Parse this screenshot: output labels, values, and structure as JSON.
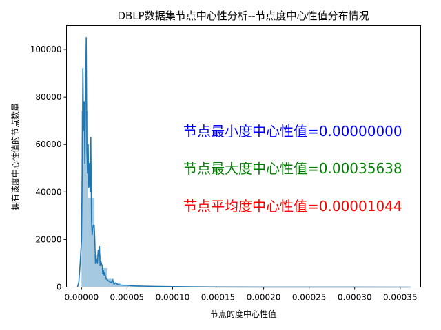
{
  "chart_data": {
    "type": "histogram",
    "title": "DBLP数据集节点中心性分析--节点度中心性值分布情况",
    "xlabel": "节点的度中心性值",
    "ylabel": "拥有该度中心性值的节点数量",
    "xlim": [
      -1.65e-05,
      0.0003725
    ],
    "ylim": [
      0,
      110000
    ],
    "xticks": [
      0.0,
      5e-05,
      0.0001,
      0.00015,
      0.0002,
      0.00025,
      0.0003,
      0.00035
    ],
    "xtick_labels": [
      "0.00000",
      "0.00005",
      "0.00010",
      "0.00015",
      "0.00020",
      "0.00025",
      "0.00030",
      "0.00035"
    ],
    "yticks": [
      0,
      20000,
      40000,
      60000,
      80000,
      100000
    ],
    "ytick_labels": [
      "0",
      "20000",
      "40000",
      "60000",
      "80000",
      "100000"
    ],
    "grid": false,
    "histogram": {
      "bin_width": 7.1e-06,
      "bins": [
        {
          "x0": 0.0,
          "x1": 7.1e-06,
          "value": 74000
        },
        {
          "x0": 7.1e-06,
          "x1": 1.42e-05,
          "value": 37500
        },
        {
          "x0": 1.42e-05,
          "x1": 2.13e-05,
          "value": 13500
        },
        {
          "x0": 2.13e-05,
          "x1": 2.84e-05,
          "value": 8000
        },
        {
          "x0": 2.84e-05,
          "x1": 3.55e-05,
          "value": 3500
        },
        {
          "x0": 3.55e-05,
          "x1": 4.26e-05,
          "value": 1800
        },
        {
          "x0": 4.26e-05,
          "x1": 4.97e-05,
          "value": 1000
        },
        {
          "x0": 4.97e-05,
          "x1": 5.68e-05,
          "value": 600
        },
        {
          "x0": 5.68e-05,
          "x1": 6.39e-05,
          "value": 400
        },
        {
          "x0": 6.39e-05,
          "x1": 7.1e-05,
          "value": 250
        },
        {
          "x0": 7.1e-05,
          "x1": 7.81e-05,
          "value": 150
        },
        {
          "x0": 7.81e-05,
          "x1": 8.52e-05,
          "value": 100
        },
        {
          "x0": 8.52e-05,
          "x1": 9.4e-05,
          "value": 80
        },
        {
          "x0": 9.4e-05,
          "x1": 0.000102,
          "value": 60
        }
      ],
      "color": "#1f77b4",
      "opacity": 0.4
    },
    "kde": {
      "color": "#1f77b4",
      "x": [
        -4.5e-06,
        -3e-06,
        -1.5e-06,
        0.0,
        8e-07,
        1.5e-06,
        2.2e-06,
        3e-06,
        3.7e-06,
        4.4e-06,
        5.2e-06,
        5.9e-06,
        6.6e-06,
        7.3e-06,
        8e-06,
        8.8e-06,
        9.5e-06,
        1.02e-05,
        1.1e-05,
        1.17e-05,
        1.24e-05,
        1.32e-05,
        1.39e-05,
        1.46e-05,
        1.53e-05,
        1.61e-05,
        1.68e-05,
        1.75e-05,
        1.83e-05,
        1.9e-05,
        1.97e-05,
        2.04e-05,
        2.12e-05,
        2.19e-05,
        2.26e-05,
        2.34e-05,
        2.41e-05,
        2.48e-05,
        2.55e-05,
        2.63e-05,
        2.7e-05,
        2.84e-05,
        2.99e-05,
        3.13e-05,
        3.28e-05,
        3.42e-05,
        3.57e-05,
        3.71e-05,
        3.86e-05,
        4e-05,
        4.3e-05,
        4.6e-05,
        5e-05,
        5.5e-05,
        6e-05,
        7e-05,
        8e-05,
        0.0001,
        0.00012,
        0.00015,
        0.0002,
        0.00025,
        0.0003,
        0.00035,
        0.0003615
      ],
      "y": [
        0,
        2000,
        10000,
        20000,
        50000,
        92000,
        66000,
        78000,
        52000,
        80000,
        105000,
        58000,
        48000,
        60000,
        42000,
        52000,
        40000,
        63000,
        28000,
        22000,
        25000,
        26000,
        26000,
        20000,
        10000,
        12000,
        11000,
        10000,
        15500,
        13000,
        17000,
        9000,
        11000,
        9800,
        9000,
        5500,
        7000,
        5000,
        6000,
        4500,
        3500,
        3000,
        2500,
        2200,
        1800,
        3000,
        1200,
        1800,
        1400,
        1000,
        900,
        800,
        800,
        600,
        500,
        400,
        300,
        200,
        120,
        60,
        20,
        10,
        5,
        0,
        0
      ]
    },
    "annotations": [
      {
        "text": "节点最小度中心性值=0.00000000",
        "color": "#0000ff"
      },
      {
        "text": "节点最大度中心性值=0.00035638",
        "color": "#008000"
      },
      {
        "text": "节点平均度中心性值=0.00001044",
        "color": "#ff0000"
      }
    ]
  }
}
